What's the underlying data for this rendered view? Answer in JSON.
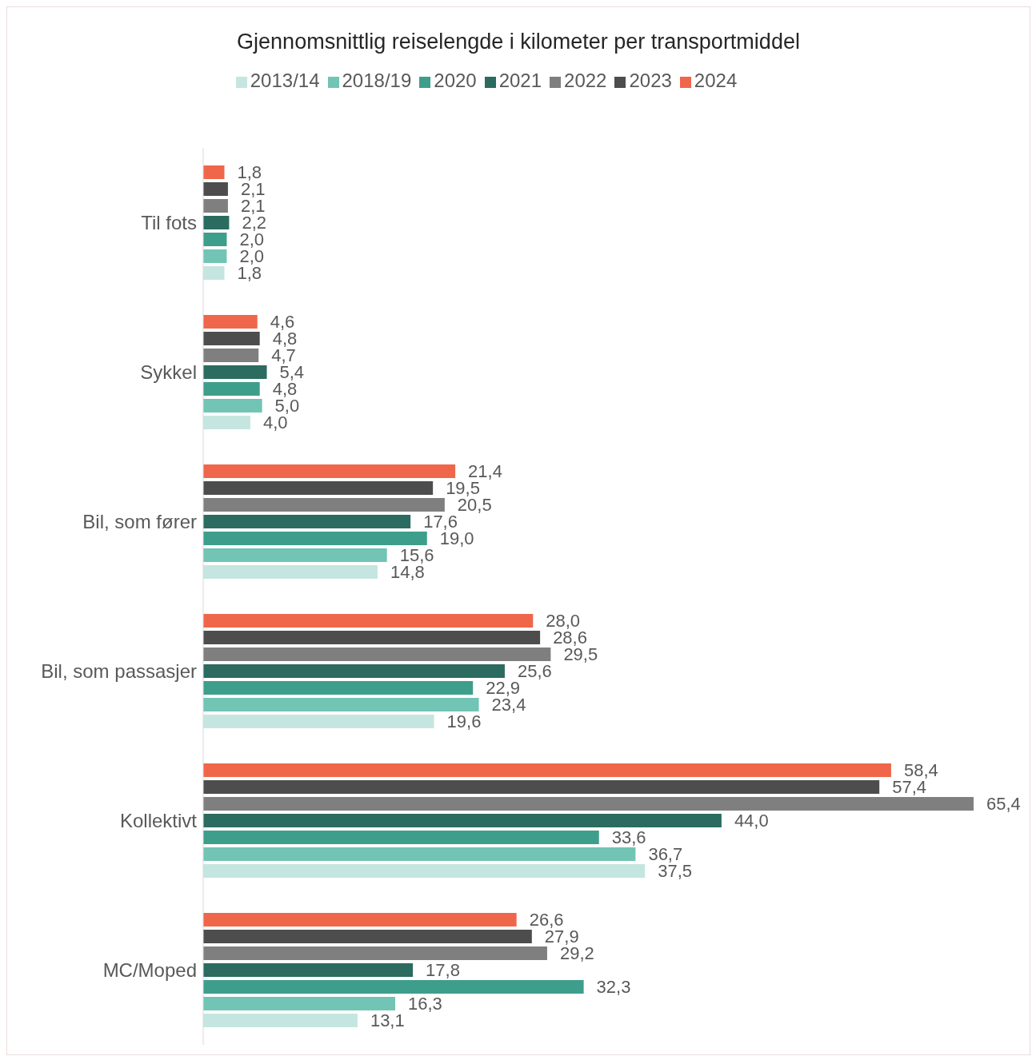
{
  "chart_data": {
    "type": "bar",
    "orientation": "horizontal",
    "title": "Gjennomsnittlig reiselengde i kilometer per transportmiddel",
    "categories": [
      "Til fots",
      "Sykkel",
      "Bil, som fører",
      "Bil, som passasjer",
      "Kollektivt",
      "MC/Moped"
    ],
    "legend": "top",
    "grid": false,
    "series": [
      {
        "name": "2024",
        "color": "#f0664a",
        "values": [
          1.8,
          4.6,
          21.4,
          28.0,
          58.4,
          26.6
        ],
        "value_labels": [
          "1,8",
          "4,6",
          "21,4",
          "28,0",
          "58,4",
          "26,6"
        ]
      },
      {
        "name": "2023",
        "color": "#4d4d4d",
        "values": [
          2.1,
          4.8,
          19.5,
          28.6,
          57.4,
          27.9
        ],
        "value_labels": [
          "2,1",
          "4,8",
          "19,5",
          "28,6",
          "57,4",
          "27,9"
        ]
      },
      {
        "name": "2022",
        "color": "#7f7f7f",
        "values": [
          2.1,
          4.7,
          20.5,
          29.5,
          65.4,
          29.2
        ],
        "value_labels": [
          "2,1",
          "4,7",
          "20,5",
          "29,5",
          "65,4",
          "29,2"
        ]
      },
      {
        "name": "2021",
        "color": "#2b6b60",
        "values": [
          2.2,
          5.4,
          17.6,
          25.6,
          44.0,
          17.8
        ],
        "value_labels": [
          "2,2",
          "5,4",
          "17,6",
          "25,6",
          "44,0",
          "17,8"
        ]
      },
      {
        "name": "2020",
        "color": "#3e9e8c",
        "values": [
          2.0,
          4.8,
          19.0,
          22.9,
          33.6,
          32.3
        ],
        "value_labels": [
          "2,0",
          "4,8",
          "19,0",
          "22,9",
          "33,6",
          "32,3"
        ]
      },
      {
        "name": "2018/19",
        "color": "#72c4b5",
        "values": [
          2.0,
          5.0,
          15.6,
          23.4,
          36.7,
          16.3
        ],
        "value_labels": [
          "2,0",
          "5,0",
          "15,6",
          "23,4",
          "36,7",
          "16,3"
        ]
      },
      {
        "name": "2013/14",
        "color": "#c5e6e0",
        "values": [
          1.8,
          4.0,
          14.8,
          19.6,
          37.5,
          13.1
        ],
        "value_labels": [
          "1,8",
          "4,0",
          "14,8",
          "19,6",
          "37,5",
          "13,1"
        ]
      }
    ]
  }
}
